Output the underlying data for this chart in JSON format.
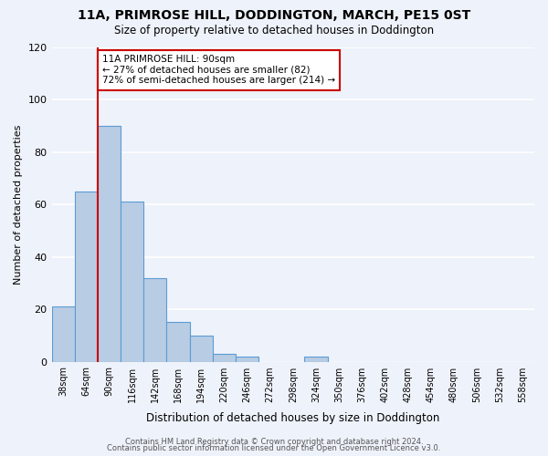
{
  "title": "11A, PRIMROSE HILL, DODDINGTON, MARCH, PE15 0ST",
  "subtitle": "Size of property relative to detached houses in Doddington",
  "xlabel": "Distribution of detached houses by size in Doddington",
  "ylabel": "Number of detached properties",
  "bar_values": [
    21,
    65,
    90,
    61,
    32,
    15,
    10,
    3,
    2,
    0,
    0,
    2,
    0,
    0,
    0,
    0,
    0,
    0,
    0,
    0,
    0
  ],
  "bin_labels": [
    "38sqm",
    "64sqm",
    "90sqm",
    "116sqm",
    "142sqm",
    "168sqm",
    "194sqm",
    "220sqm",
    "246sqm",
    "272sqm",
    "298sqm",
    "324sqm",
    "350sqm",
    "376sqm",
    "402sqm",
    "428sqm",
    "454sqm",
    "480sqm",
    "506sqm",
    "532sqm",
    "558sqm"
  ],
  "bar_color": "#b8cce4",
  "bar_edgecolor": "#5b9bd5",
  "marker_bin_index": 2,
  "marker_color": "#cc0000",
  "annotation_title": "11A PRIMROSE HILL: 90sqm",
  "annotation_line1": "← 27% of detached houses are smaller (82)",
  "annotation_line2": "72% of semi-detached houses are larger (214) →",
  "annotation_box_color": "#ffffff",
  "annotation_box_edgecolor": "#cc0000",
  "ylim": [
    0,
    120
  ],
  "yticks": [
    0,
    20,
    40,
    60,
    80,
    100,
    120
  ],
  "footnote1": "Contains HM Land Registry data © Crown copyright and database right 2024.",
  "footnote2": "Contains public sector information licensed under the Open Government Licence v3.0.",
  "background_color": "#eef2fa",
  "grid_color": "#ffffff"
}
